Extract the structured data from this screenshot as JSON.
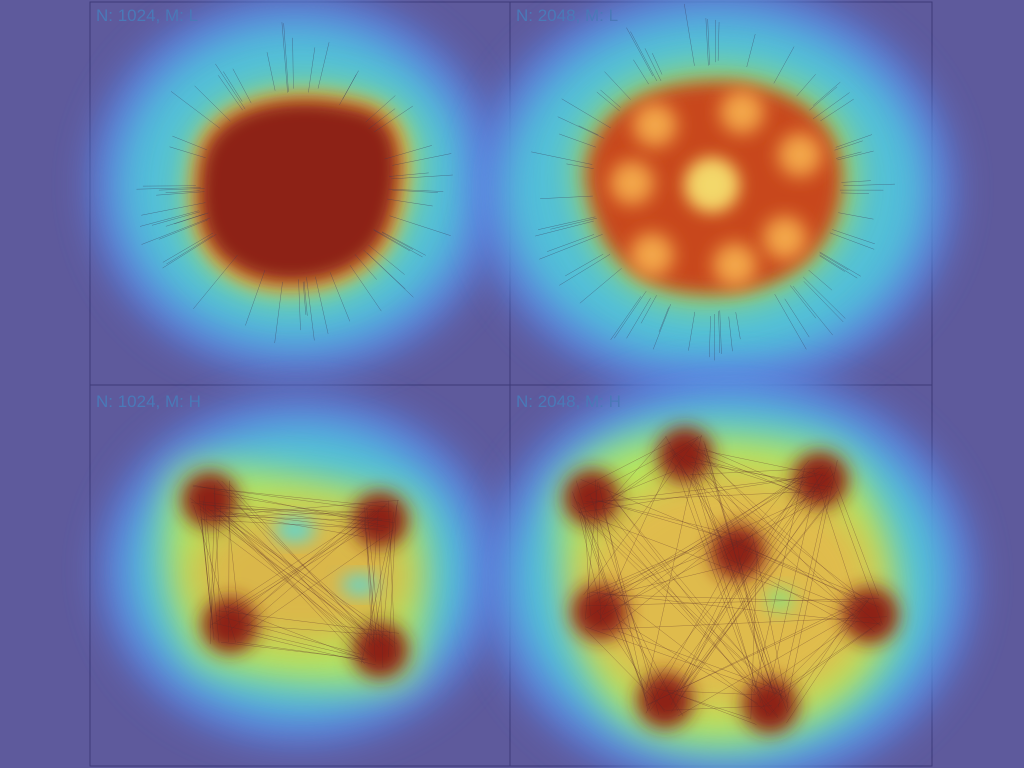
{
  "panels": [
    {
      "label": "N: 1024, M: L",
      "n": 1024,
      "m": "L",
      "shape": "blob"
    },
    {
      "label": "N: 2048, M: L",
      "n": 2048,
      "m": "L",
      "shape": "multi-cluster"
    },
    {
      "label": "N: 1024, M: H",
      "n": 1024,
      "m": "H",
      "shape": "four-cluster"
    },
    {
      "label": "N: 2048, M: H",
      "n": 2048,
      "m": "H",
      "shape": "eight-cluster"
    }
  ],
  "colors": {
    "background": "#5e5a9c",
    "grid_line": "#3d3a78",
    "heat_low": "#4f7fe0",
    "heat_mid": "#e8e650",
    "heat_high": "#8a1f14",
    "label_text": "#4a79b8"
  }
}
